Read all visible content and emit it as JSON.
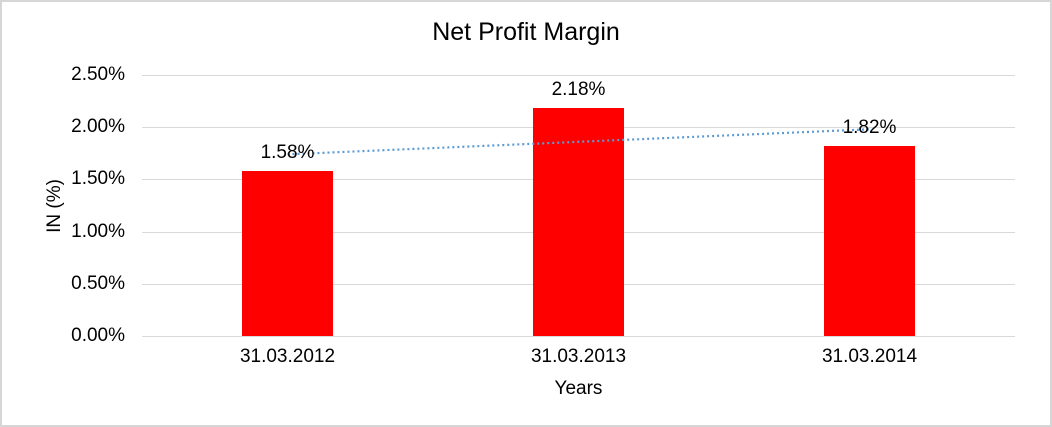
{
  "colors": {
    "frame_border": "#d6d6d6",
    "gridline": "#d9d9d9",
    "text": "#000000"
  },
  "chart_data": {
    "type": "bar",
    "title": "Net Profit Margin",
    "categories": [
      "31.03.2012",
      "31.03.2013",
      "31.03.2014"
    ],
    "values": [
      1.58,
      2.18,
      1.82
    ],
    "data_labels": [
      "1.58%",
      "2.18%",
      "1.82%"
    ],
    "xlabel": "Years",
    "ylabel": "IN (%)",
    "ylim": [
      0,
      2.5
    ],
    "yticks": [
      {
        "value": 2.5,
        "label": "2.50%"
      },
      {
        "value": 2.0,
        "label": "2.00%"
      },
      {
        "value": 1.5,
        "label": "1.50%"
      },
      {
        "value": 1.0,
        "label": "1.00%"
      },
      {
        "value": 0.5,
        "label": "0.50%"
      },
      {
        "value": 0.0,
        "label": "0.00%"
      }
    ],
    "bar_color": "#ff0000",
    "grid": true,
    "legend": false,
    "trendline": {
      "type": "linear",
      "style": "dotted",
      "color": "#5b9bd5",
      "start_value": 1.74,
      "end_value": 1.98
    }
  }
}
